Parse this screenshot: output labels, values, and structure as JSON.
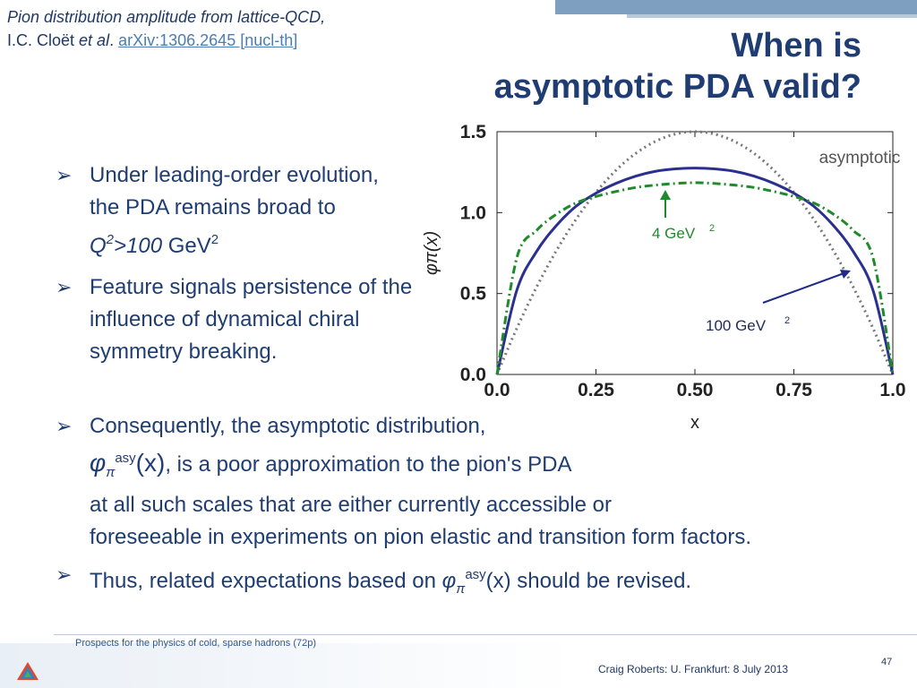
{
  "reference": {
    "line1": "Pion distribution amplitude from lattice-QCD,",
    "authors": "I.C. Cloët",
    "etal": "et al",
    "dot": ".",
    "link": "arXiv:1306.2645 [nucl-th]"
  },
  "title": {
    "line1": "When is",
    "line2": "asymptotic PDA valid?"
  },
  "bullets_top": [
    {
      "text_a": "Under leading-order evolution, the PDA remains broad to ",
      "q": "Q",
      "q_sup": "2",
      "q_rest": ">100",
      "unit": " GeV",
      "unit_sup": "2"
    },
    {
      "text": "Feature signals persistence of the influence of dynamical chiral symmetry breaking."
    }
  ],
  "bullets_bottom": [
    {
      "line1": "Consequently, the asymptotic distribution,",
      "phi": "φ",
      "phi_sub": "π",
      "phi_sup": "asy",
      "phi_arg": "(x)",
      "line2_rest": ", is a poor approximation to the pion's PDA",
      "line3": "at all such scales that are either currently accessible or",
      "line4": "foreseeable in experiments on pion elastic and transition form factors."
    },
    {
      "text_a": "Thus, related expectations based on ",
      "phi": "φ",
      "phi_sub": "π",
      "phi_sup": "asy",
      "phi_arg": "(x)",
      "text_b": " should be revised."
    }
  ],
  "chart_data": {
    "type": "line",
    "xlabel": "x",
    "ylabel": "φπ(x)",
    "xlim": [
      0,
      1
    ],
    "ylim": [
      0,
      1.5
    ],
    "xticks": [
      "0.0",
      "0.25",
      "0.50",
      "0.75",
      "1.0"
    ],
    "yticks": [
      "0.0",
      "0.5",
      "1.0",
      "1.5"
    ],
    "x": [
      0.0,
      0.05,
      0.1,
      0.15,
      0.2,
      0.25,
      0.3,
      0.35,
      0.4,
      0.45,
      0.5,
      0.55,
      0.6,
      0.65,
      0.7,
      0.75,
      0.8,
      0.85,
      0.9,
      0.95,
      1.0
    ],
    "series": [
      {
        "name": "asymptotic",
        "style": "dotted",
        "color": "#777777",
        "values": [
          0.0,
          0.285,
          0.54,
          0.765,
          0.96,
          1.125,
          1.26,
          1.365,
          1.44,
          1.485,
          1.5,
          1.485,
          1.44,
          1.365,
          1.26,
          1.125,
          0.96,
          0.765,
          0.54,
          0.285,
          0.0
        ]
      },
      {
        "name": "100 GeV2",
        "style": "solid",
        "color": "#2b2f8f",
        "values": [
          0.0,
          0.52,
          0.76,
          0.92,
          1.04,
          1.12,
          1.18,
          1.225,
          1.255,
          1.27,
          1.275,
          1.27,
          1.255,
          1.225,
          1.18,
          1.12,
          1.04,
          0.92,
          0.76,
          0.52,
          0.0
        ]
      },
      {
        "name": "4 GeV2",
        "style": "dashdot",
        "color": "#1f8a2a",
        "values": [
          0.0,
          0.72,
          0.89,
          0.99,
          1.06,
          1.1,
          1.13,
          1.155,
          1.17,
          1.18,
          1.185,
          1.18,
          1.17,
          1.155,
          1.13,
          1.1,
          1.06,
          0.99,
          0.89,
          0.72,
          0.0
        ]
      }
    ],
    "annotations": {
      "asymptotic": "asymptotic",
      "gev4": "4 GeV",
      "gev4_sup": "2",
      "gev100": "100 GeV",
      "gev100_sup": "2"
    }
  },
  "footer": {
    "left": "Prospects for the physics of cold, sparse hadrons (72p)",
    "right": "Craig Roberts: U. Frankfurt: 8 July 2013",
    "page": "47"
  }
}
